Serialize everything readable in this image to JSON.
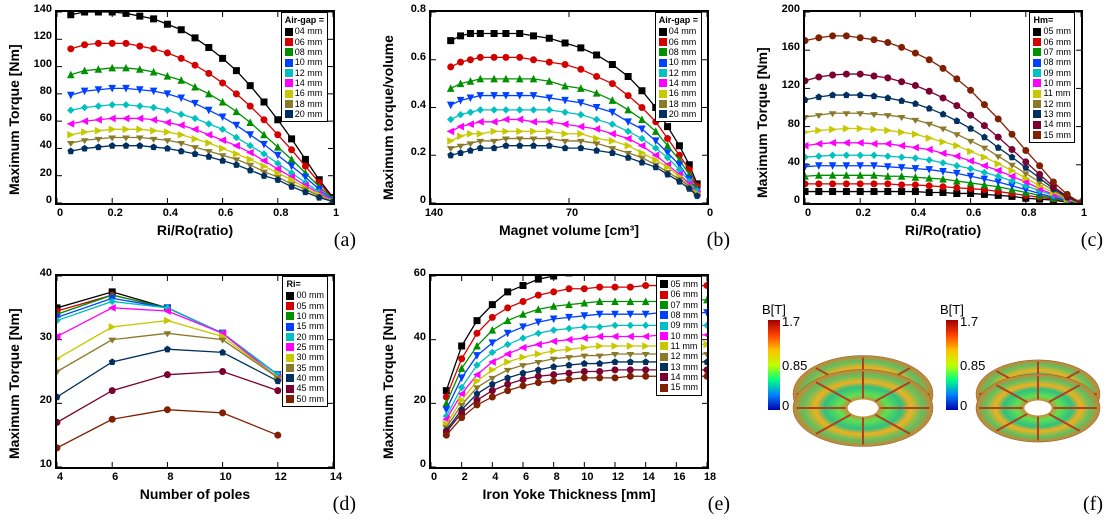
{
  "colors": {
    "series": [
      "#000000",
      "#d40000",
      "#009000",
      "#0040ff",
      "#00c0c0",
      "#ff00ff",
      "#c8c800",
      "#8a7a2a",
      "#003060"
    ],
    "series11": [
      "#000000",
      "#d40000",
      "#009000",
      "#0040ff",
      "#00c0c0",
      "#ff00ff",
      "#c8c800",
      "#8a7a2a",
      "#003060",
      "#7a0030",
      "#802000"
    ],
    "bg": "#ffffff",
    "axis": "#000000"
  },
  "markers9": [
    "M-3,-3 h6 v6 h-6 z",
    "M0,-3 A3,3 0 1,0 0,3 A3,3 0 1,0 0,-3",
    "M0,-3 L3,3 L-3,3 Z",
    "M0,3 L3,-3 L-3,-3 Z",
    "M0,-3 L3,0 L0,3 L-3,0 Z",
    "M-3,0 L3,-3 L3,3 Z",
    "M3,0 L-3,-3 L-3,3 Z",
    "M-3,-1.5 L3,-1.5 L0,3 Z",
    "M0,-3 L2.8,-1 L1.8,2.6 L-1.8,2.6 L-2.8,-1 Z"
  ],
  "markers11": [
    "M-3,-3 h6 v6 h-6 z",
    "M0,-3 A3,3 0 1,0 0,3 A3,3 0 1,0 0,-3",
    "M0,-3 L3,3 L-3,3 Z",
    "M0,3 L3,-3 L-3,-3 Z",
    "M0,-3 L3,0 L0,3 L-3,0 Z",
    "M-3,0 L3,-3 L3,3 Z",
    "M3,0 L-3,-3 L-3,3 Z",
    "M-3,-1.5 L3,-1.5 L0,3 Z",
    "M0,-3 L2.8,-1 L1.8,2.6 L-1.8,2.6 L-2.8,-1 Z",
    "M0,-3 A3,3 0 1,0 0,3 A3,3 0 1,0 0,-3",
    "M0,-3 A3,3 0 1,0 0,3 A3,3 0 1,0 0,-3"
  ],
  "pA": {
    "type": "line",
    "xlabel": "Ri/Ro(ratio)",
    "ylabel": "Maximum Torque [Nm]",
    "xlim": [
      0,
      1.0
    ],
    "ylim": [
      0,
      140
    ],
    "xticks": [
      0,
      0.2,
      0.4,
      0.6,
      0.8,
      1.0
    ],
    "yticks": [
      0,
      20,
      40,
      60,
      80,
      100,
      120,
      140
    ],
    "legend_title": "Air-gap =",
    "legend": [
      "04 mm",
      "06 mm",
      "08 mm",
      "10 mm",
      "12 mm",
      "14 mm",
      "16 mm",
      "18 mm",
      "20 mm"
    ],
    "x": [
      0.05,
      0.1,
      0.15,
      0.2,
      0.25,
      0.3,
      0.35,
      0.4,
      0.45,
      0.5,
      0.55,
      0.6,
      0.65,
      0.7,
      0.75,
      0.8,
      0.85,
      0.9,
      0.95,
      1.0
    ],
    "series": [
      [
        138,
        140,
        140,
        140,
        139,
        137,
        135,
        131,
        127,
        121,
        114,
        106,
        97,
        86,
        74,
        61,
        47,
        32,
        17,
        4
      ],
      [
        113,
        116,
        117,
        117,
        117,
        115,
        113,
        110,
        106,
        101,
        95,
        88,
        80,
        71,
        61,
        50,
        39,
        27,
        15,
        3
      ],
      [
        94,
        97,
        98,
        99,
        99,
        98,
        96,
        93,
        90,
        85,
        80,
        74,
        67,
        59,
        50,
        41,
        32,
        22,
        12,
        3
      ],
      [
        79,
        82,
        83,
        84,
        84,
        83,
        82,
        80,
        77,
        73,
        68,
        63,
        57,
        50,
        43,
        35,
        27,
        19,
        10,
        2
      ],
      [
        68,
        70,
        71,
        72,
        72,
        71,
        70,
        68,
        65,
        62,
        58,
        54,
        48,
        42,
        36,
        29,
        22,
        15,
        8,
        2
      ],
      [
        58,
        60,
        61,
        62,
        62,
        62,
        61,
        59,
        57,
        54,
        50,
        46,
        42,
        37,
        31,
        25,
        19,
        13,
        7,
        2
      ],
      [
        50,
        52,
        53,
        54,
        54,
        54,
        53,
        52,
        50,
        47,
        44,
        40,
        36,
        32,
        27,
        22,
        17,
        11,
        6,
        1
      ],
      [
        44,
        46,
        47,
        48,
        48,
        48,
        47,
        46,
        44,
        41,
        38,
        35,
        32,
        28,
        23,
        19,
        14,
        10,
        5,
        1
      ],
      [
        38,
        40,
        41,
        42,
        42,
        42,
        41,
        40,
        38,
        36,
        34,
        31,
        28,
        24,
        20,
        17,
        12,
        8,
        4,
        1
      ]
    ],
    "sublabel": "(a)"
  },
  "pB": {
    "type": "line",
    "xlabel": "Magnet volume [cm³]",
    "ylabel": "Maximum torque/volume",
    "xlim": [
      140,
      0
    ],
    "ylim": [
      0,
      0.8
    ],
    "xticks": [
      140,
      70,
      0
    ],
    "yticks": [
      0,
      0.2,
      0.4,
      0.6,
      0.8
    ],
    "legend_title": "Air-gap =",
    "legend": [
      "04 mm",
      "06 mm",
      "08 mm",
      "10 mm",
      "12 mm",
      "14 mm",
      "16 mm",
      "18 mm",
      "20 mm"
    ],
    "x": [
      130,
      125,
      120,
      115,
      108,
      102,
      95,
      88,
      80,
      72,
      64,
      56,
      48,
      40,
      33,
      26,
      20,
      14,
      9,
      5
    ],
    "series": [
      [
        0.68,
        0.7,
        0.71,
        0.71,
        0.71,
        0.71,
        0.71,
        0.7,
        0.69,
        0.67,
        0.65,
        0.62,
        0.58,
        0.53,
        0.47,
        0.4,
        0.32,
        0.24,
        0.16,
        0.08
      ],
      [
        0.57,
        0.59,
        0.6,
        0.61,
        0.61,
        0.61,
        0.61,
        0.6,
        0.59,
        0.58,
        0.56,
        0.53,
        0.5,
        0.45,
        0.4,
        0.34,
        0.27,
        0.2,
        0.14,
        0.07
      ],
      [
        0.48,
        0.5,
        0.51,
        0.52,
        0.52,
        0.52,
        0.52,
        0.52,
        0.51,
        0.49,
        0.48,
        0.46,
        0.43,
        0.39,
        0.35,
        0.3,
        0.24,
        0.18,
        0.12,
        0.06
      ],
      [
        0.41,
        0.43,
        0.44,
        0.45,
        0.45,
        0.45,
        0.45,
        0.45,
        0.44,
        0.43,
        0.42,
        0.4,
        0.38,
        0.34,
        0.31,
        0.26,
        0.21,
        0.16,
        0.1,
        0.05
      ],
      [
        0.35,
        0.37,
        0.38,
        0.39,
        0.39,
        0.39,
        0.39,
        0.39,
        0.39,
        0.38,
        0.37,
        0.35,
        0.33,
        0.3,
        0.27,
        0.23,
        0.19,
        0.14,
        0.09,
        0.05
      ],
      [
        0.3,
        0.32,
        0.33,
        0.34,
        0.34,
        0.35,
        0.35,
        0.34,
        0.34,
        0.33,
        0.32,
        0.31,
        0.29,
        0.27,
        0.24,
        0.2,
        0.16,
        0.12,
        0.08,
        0.04
      ],
      [
        0.26,
        0.28,
        0.29,
        0.29,
        0.3,
        0.3,
        0.3,
        0.3,
        0.3,
        0.29,
        0.29,
        0.27,
        0.26,
        0.24,
        0.21,
        0.18,
        0.15,
        0.11,
        0.07,
        0.04
      ],
      [
        0.23,
        0.24,
        0.25,
        0.26,
        0.26,
        0.27,
        0.27,
        0.27,
        0.27,
        0.26,
        0.26,
        0.25,
        0.23,
        0.21,
        0.19,
        0.16,
        0.13,
        0.1,
        0.07,
        0.03
      ],
      [
        0.2,
        0.21,
        0.22,
        0.23,
        0.23,
        0.24,
        0.24,
        0.24,
        0.24,
        0.23,
        0.23,
        0.22,
        0.21,
        0.19,
        0.17,
        0.15,
        0.12,
        0.09,
        0.06,
        0.03
      ]
    ],
    "sublabel": "(b)"
  },
  "pC": {
    "type": "line",
    "xlabel": "Ri/Ro(ratio)",
    "ylabel": "Maximum Torque [Nm]",
    "xlim": [
      0,
      1.0
    ],
    "ylim": [
      0,
      200
    ],
    "xticks": [
      0,
      0.2,
      0.4,
      0.6,
      0.8,
      1.0
    ],
    "yticks": [
      0,
      40,
      80,
      120,
      160,
      200
    ],
    "legend_title": "Hm=",
    "legend": [
      "05 mm",
      "06 mm",
      "07 mm",
      "08 mm",
      "09 mm",
      "10 mm",
      "11 mm",
      "12 mm",
      "13 mm",
      "14 mm",
      "15 mm"
    ],
    "x": [
      0.0,
      0.05,
      0.1,
      0.15,
      0.2,
      0.25,
      0.3,
      0.35,
      0.4,
      0.45,
      0.5,
      0.55,
      0.6,
      0.65,
      0.7,
      0.75,
      0.8,
      0.85,
      0.9,
      0.95,
      1.0
    ],
    "series": [
      [
        12,
        12,
        12,
        12,
        12,
        12,
        12,
        12,
        12,
        11,
        11,
        10,
        10,
        9,
        8,
        7,
        5,
        4,
        3,
        1,
        0
      ],
      [
        20,
        20,
        20,
        20,
        20,
        20,
        20,
        19,
        19,
        18,
        17,
        16,
        15,
        14,
        12,
        10,
        8,
        6,
        4,
        2,
        0
      ],
      [
        28,
        29,
        29,
        29,
        29,
        29,
        28,
        28,
        27,
        26,
        25,
        23,
        21,
        19,
        17,
        14,
        11,
        8,
        5,
        2,
        0
      ],
      [
        38,
        39,
        39,
        39,
        39,
        39,
        38,
        37,
        36,
        35,
        33,
        31,
        28,
        25,
        22,
        18,
        14,
        10,
        6,
        3,
        0
      ],
      [
        48,
        49,
        50,
        50,
        50,
        50,
        49,
        48,
        47,
        45,
        42,
        39,
        36,
        32,
        28,
        23,
        18,
        13,
        8,
        3,
        0
      ],
      [
        60,
        62,
        63,
        63,
        63,
        62,
        62,
        60,
        58,
        56,
        52,
        49,
        44,
        39,
        34,
        28,
        22,
        15,
        9,
        4,
        0
      ],
      [
        74,
        76,
        77,
        78,
        78,
        77,
        76,
        74,
        72,
        68,
        64,
        60,
        54,
        48,
        41,
        34,
        26,
        18,
        11,
        4,
        0
      ],
      [
        90,
        92,
        94,
        94,
        94,
        93,
        92,
        90,
        87,
        83,
        78,
        72,
        65,
        58,
        49,
        40,
        31,
        22,
        13,
        5,
        0
      ],
      [
        108,
        111,
        113,
        113,
        113,
        112,
        110,
        107,
        104,
        99,
        93,
        86,
        78,
        69,
        58,
        48,
        37,
        26,
        15,
        6,
        0
      ],
      [
        128,
        132,
        134,
        135,
        135,
        133,
        131,
        127,
        123,
        117,
        110,
        102,
        92,
        81,
        69,
        56,
        43,
        30,
        17,
        7,
        0
      ],
      [
        170,
        173,
        175,
        175,
        173,
        171,
        168,
        163,
        157,
        150,
        141,
        130,
        118,
        103,
        88,
        72,
        55,
        39,
        22,
        9,
        0
      ]
    ],
    "sublabel": "(c)"
  },
  "pD": {
    "type": "line",
    "xlabel": "Number of poles",
    "ylabel": "Maximum Torque [Nm]",
    "xlim": [
      4,
      14
    ],
    "ylim": [
      10,
      40
    ],
    "xticks": [
      4,
      6,
      8,
      10,
      12,
      14
    ],
    "yticks": [
      10,
      20,
      30,
      40
    ],
    "legend_title": "Ri=",
    "legend": [
      "00 mm",
      "05 mm",
      "10 mm",
      "15 mm",
      "20 mm",
      "25 mm",
      "30 mm",
      "35 mm",
      "40 mm",
      "45 mm",
      "50 mm"
    ],
    "x": [
      4,
      6,
      8,
      10,
      12
    ],
    "series": [
      [
        35,
        37.5,
        35,
        31,
        24
      ],
      [
        34.5,
        37,
        35,
        31,
        24.5
      ],
      [
        34,
        37,
        35,
        31,
        24.5
      ],
      [
        33.5,
        36.5,
        35,
        31,
        24.5
      ],
      [
        33,
        36,
        35,
        31,
        24.5
      ],
      [
        30.5,
        35,
        34.5,
        31,
        24
      ],
      [
        27,
        32,
        33,
        30.5,
        24
      ],
      [
        25,
        30,
        31,
        30,
        24
      ],
      [
        21,
        26.5,
        28.5,
        28,
        23.5
      ],
      [
        17,
        22,
        24.5,
        25,
        22
      ],
      [
        13,
        17.5,
        19,
        18.5,
        15
      ]
    ],
    "sublabel": "(d)"
  },
  "pE": {
    "type": "line",
    "xlabel": "Iron Yoke Thickness [mm]",
    "ylabel": "Maximum Torque [Nm]",
    "xlim": [
      0,
      18
    ],
    "ylim": [
      0,
      60
    ],
    "xticks": [
      0,
      2,
      4,
      6,
      8,
      10,
      12,
      14,
      16,
      18
    ],
    "yticks": [
      0,
      20,
      40,
      60
    ],
    "legend_title": "",
    "legend": [
      "05 mm",
      "06 mm",
      "07 mm",
      "08 mm",
      "09 mm",
      "10 mm",
      "11 mm",
      "12 mm",
      "13 mm",
      "14 mm",
      "15 mm"
    ],
    "x": [
      1,
      2,
      3,
      4,
      5,
      6,
      7,
      8,
      9,
      10,
      11,
      12,
      13,
      14,
      15,
      16,
      17,
      18
    ],
    "series": [
      [
        24,
        38,
        46,
        51,
        55,
        57,
        59,
        60,
        61,
        61.5,
        62,
        62,
        62.5,
        62.5,
        62.5,
        62.5,
        62.5,
        62.5
      ],
      [
        22,
        34,
        42,
        47,
        50,
        52,
        54,
        55,
        56,
        56,
        56.5,
        56.5,
        56.5,
        57,
        57,
        57,
        57,
        57
      ],
      [
        20,
        31,
        38,
        43,
        46,
        48,
        49.5,
        50.5,
        51,
        51.5,
        52,
        52,
        52,
        52,
        52,
        52.5,
        52.5,
        52.5
      ],
      [
        18,
        28,
        35,
        39,
        42,
        44,
        45.5,
        46.5,
        47,
        47.5,
        48,
        48,
        48,
        48,
        48.5,
        48.5,
        48.5,
        48.5
      ],
      [
        16,
        25,
        32,
        36,
        38.5,
        40.5,
        42,
        43,
        43.5,
        44,
        44,
        44.5,
        44.5,
        44.5,
        44.5,
        44.5,
        44.5,
        44.5
      ],
      [
        15,
        23,
        29,
        33,
        35.5,
        37.5,
        38.5,
        39.5,
        40,
        40.5,
        41,
        41,
        41,
        41,
        41.5,
        41.5,
        41.5,
        41.5
      ],
      [
        13.5,
        21,
        27,
        30.5,
        33,
        34.5,
        35.5,
        36.5,
        37,
        37.5,
        38,
        38,
        38,
        38,
        38,
        38.5,
        38.5,
        38.5
      ],
      [
        12.5,
        19.5,
        25,
        28,
        30.5,
        32,
        33,
        34,
        34.5,
        35,
        35,
        35.5,
        35.5,
        35.5,
        35.5,
        35.5,
        35.5,
        35.5
      ],
      [
        11.5,
        18,
        23,
        26,
        28,
        29.5,
        30.5,
        31.5,
        32,
        32.5,
        32.5,
        33,
        33,
        33,
        33,
        33,
        33,
        33
      ],
      [
        11,
        17,
        21,
        24,
        26,
        27.5,
        28.5,
        29,
        29.5,
        30,
        30,
        30.5,
        30.5,
        30.5,
        30.5,
        30.5,
        30.5,
        30.5
      ],
      [
        10,
        15.5,
        19.5,
        22,
        24,
        25.5,
        26.5,
        27,
        27.5,
        28,
        28,
        28,
        28.5,
        28.5,
        28.5,
        28.5,
        28.5,
        28.5
      ]
    ],
    "sublabel": "(e)"
  },
  "pF": {
    "cb_title": "B[T]",
    "cb_max": "1.7",
    "cb_mid": "0.85",
    "cb_min": "0",
    "sublabel": "(f)"
  }
}
